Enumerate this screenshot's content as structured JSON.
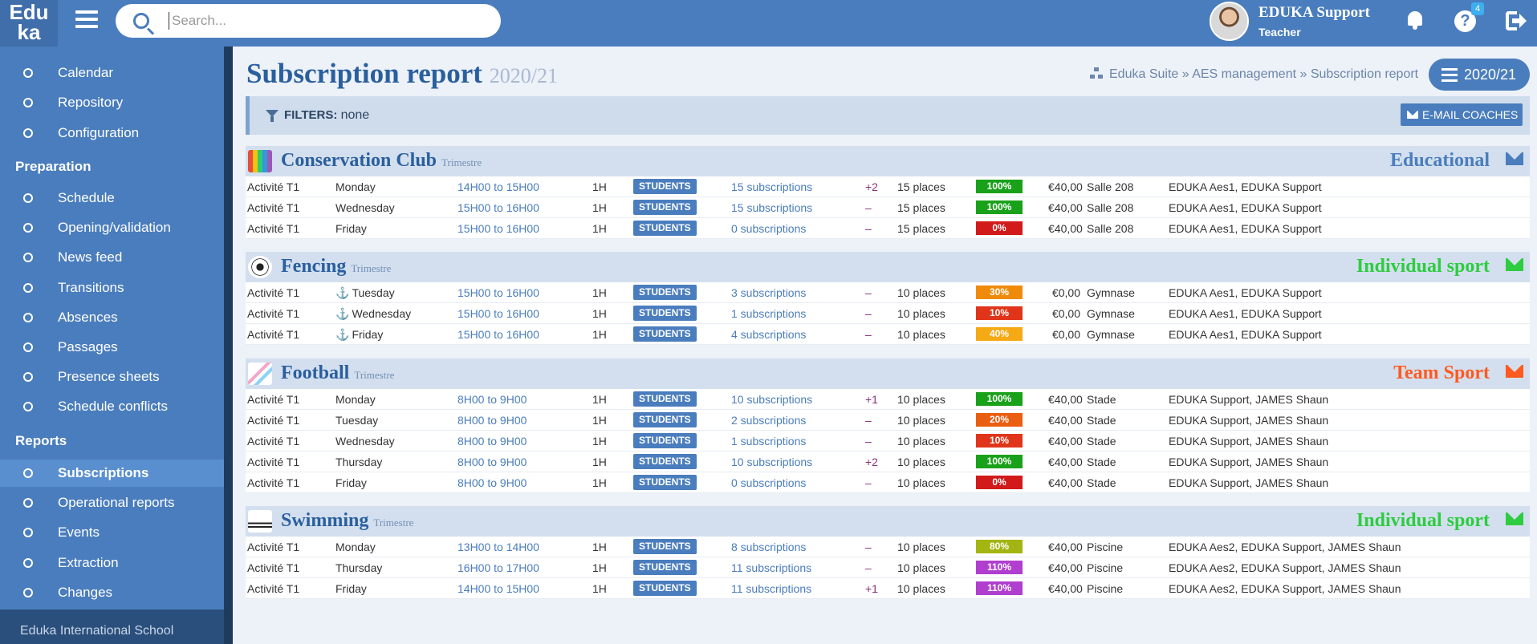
{
  "header": {
    "logo_line1": "Edu",
    "logo_line2": "ka",
    "search_placeholder": "Search...",
    "user_name": "EDUKA Support",
    "user_role": "Teacher",
    "help_badge": "4"
  },
  "sidebar": {
    "top_items": [
      "Calendar",
      "Repository",
      "Configuration"
    ],
    "preparation_title": "Preparation",
    "preparation_items": [
      "Schedule",
      "Opening/validation",
      "News feed",
      "Transitions",
      "Absences",
      "Passages",
      "Presence sheets",
      "Schedule conflicts"
    ],
    "reports_title": "Reports",
    "reports_items": [
      "Subscriptions",
      "Operational reports",
      "Events",
      "Extraction",
      "Changes"
    ],
    "active_item": "Subscriptions",
    "footer": "Eduka International School"
  },
  "page": {
    "title": "Subscription report",
    "year": "2020/21",
    "breadcrumb": "Eduka Suite » AES management » Subscription report",
    "year_button": "2020/21",
    "filters_label": "FILTERS:",
    "filters_value": "none",
    "email_button": "E-MAIL COACHES"
  },
  "colors": {
    "primary": "#4a7dbd",
    "educational": "#4a7dbd",
    "individual_sport": "#2ecc40",
    "team_sport": "#ff5a1f"
  },
  "activities": [
    {
      "name": "Conservation Club",
      "period": "Trimestre",
      "category": "Educational",
      "category_color": "#4a7dbd",
      "icon": "crayons-icon",
      "rows": [
        {
          "name": "Activité T1",
          "day": "Monday",
          "anchor": false,
          "time": "14H00 to 15H00",
          "duration": "1H",
          "button": "STUDENTS",
          "subscriptions": "15 subscriptions",
          "delta": "+2",
          "places": "15 places",
          "percent": "100%",
          "pct_color": "#1aa11a",
          "price": "€40,00",
          "room": "Salle 208",
          "coaches": "EDUKA Aes1, EDUKA Support"
        },
        {
          "name": "Activité T1",
          "day": "Wednesday",
          "anchor": false,
          "time": "15H00 to 16H00",
          "duration": "1H",
          "button": "STUDENTS",
          "subscriptions": "15 subscriptions",
          "delta": "–",
          "places": "15 places",
          "percent": "100%",
          "pct_color": "#1aa11a",
          "price": "€40,00",
          "room": "Salle 208",
          "coaches": "EDUKA Aes1, EDUKA Support"
        },
        {
          "name": "Activité T1",
          "day": "Friday",
          "anchor": false,
          "time": "15H00 to 16H00",
          "duration": "1H",
          "button": "STUDENTS",
          "subscriptions": "0 subscriptions",
          "delta": "–",
          "places": "15 places",
          "percent": "0%",
          "pct_color": "#d11a1a",
          "price": "€40,00",
          "room": "Salle 208",
          "coaches": "EDUKA Aes1, EDUKA Support"
        }
      ]
    },
    {
      "name": "Fencing",
      "period": "Trimestre",
      "category": "Individual sport",
      "category_color": "#2ecc40",
      "icon": "soccer-ball-icon",
      "rows": [
        {
          "name": "Activité T1",
          "day": "Tuesday",
          "anchor": true,
          "time": "15H00 to 16H00",
          "duration": "1H",
          "button": "STUDENTS",
          "subscriptions": "3 subscriptions",
          "delta": "–",
          "places": "10 places",
          "percent": "30%",
          "pct_color": "#f08a0b",
          "price": "€0,00",
          "room": "Gymnase",
          "coaches": "EDUKA Aes1, EDUKA Support"
        },
        {
          "name": "Activité T1",
          "day": "Wednesday",
          "anchor": true,
          "time": "15H00 to 16H00",
          "duration": "1H",
          "button": "STUDENTS",
          "subscriptions": "1 subscriptions",
          "delta": "–",
          "places": "10 places",
          "percent": "10%",
          "pct_color": "#e0351a",
          "price": "€0,00",
          "room": "Gymnase",
          "coaches": "EDUKA Aes1, EDUKA Support"
        },
        {
          "name": "Activité T1",
          "day": "Friday",
          "anchor": true,
          "time": "15H00 to 16H00",
          "duration": "1H",
          "button": "STUDENTS",
          "subscriptions": "4 subscriptions",
          "delta": "–",
          "places": "10 places",
          "percent": "40%",
          "pct_color": "#f5a914",
          "price": "€0,00",
          "room": "Gymnase",
          "coaches": "EDUKA Aes1, EDUKA Support"
        }
      ]
    },
    {
      "name": "Football",
      "period": "Trimestre",
      "category": "Team Sport",
      "category_color": "#ff5a1f",
      "icon": "kids-drawing-icon",
      "rows": [
        {
          "name": "Activité T1",
          "day": "Monday",
          "anchor": false,
          "time": "8H00 to 9H00",
          "duration": "1H",
          "button": "STUDENTS",
          "subscriptions": "10 subscriptions",
          "delta": "+1",
          "places": "10 places",
          "percent": "100%",
          "pct_color": "#1aa11a",
          "price": "€40,00",
          "room": "Stade",
          "coaches": "EDUKA Support, JAMES Shaun"
        },
        {
          "name": "Activité T1",
          "day": "Tuesday",
          "anchor": false,
          "time": "8H00 to 9H00",
          "duration": "1H",
          "button": "STUDENTS",
          "subscriptions": "2 subscriptions",
          "delta": "–",
          "places": "10 places",
          "percent": "20%",
          "pct_color": "#ea5e12",
          "price": "€40,00",
          "room": "Stade",
          "coaches": "EDUKA Support, JAMES Shaun"
        },
        {
          "name": "Activité T1",
          "day": "Wednesday",
          "anchor": false,
          "time": "8H00 to 9H00",
          "duration": "1H",
          "button": "STUDENTS",
          "subscriptions": "1 subscriptions",
          "delta": "–",
          "places": "10 places",
          "percent": "10%",
          "pct_color": "#e0351a",
          "price": "€40,00",
          "room": "Stade",
          "coaches": "EDUKA Support, JAMES Shaun"
        },
        {
          "name": "Activité T1",
          "day": "Thursday",
          "anchor": false,
          "time": "8H00 to 9H00",
          "duration": "1H",
          "button": "STUDENTS",
          "subscriptions": "10 subscriptions",
          "delta": "+2",
          "places": "10 places",
          "percent": "100%",
          "pct_color": "#1aa11a",
          "price": "€40,00",
          "room": "Stade",
          "coaches": "EDUKA Support, JAMES Shaun"
        },
        {
          "name": "Activité T1",
          "day": "Friday",
          "anchor": false,
          "time": "8H00 to 9H00",
          "duration": "1H",
          "button": "STUDENTS",
          "subscriptions": "0 subscriptions",
          "delta": "–",
          "places": "10 places",
          "percent": "0%",
          "pct_color": "#d11a1a",
          "price": "€40,00",
          "room": "Stade",
          "coaches": "EDUKA Support, JAMES Shaun"
        }
      ]
    },
    {
      "name": "Swimming",
      "period": "Trimestre",
      "category": "Individual sport",
      "category_color": "#2ecc40",
      "icon": "swimmer-icon",
      "rows": [
        {
          "name": "Activité T1",
          "day": "Monday",
          "anchor": false,
          "time": "13H00 to 14H00",
          "duration": "1H",
          "button": "STUDENTS",
          "subscriptions": "8 subscriptions",
          "delta": "–",
          "places": "10 places",
          "percent": "80%",
          "pct_color": "#a3b512",
          "price": "€40,00",
          "room": "Piscine",
          "coaches": "EDUKA Aes2, EDUKA Support, JAMES Shaun"
        },
        {
          "name": "Activité T1",
          "day": "Thursday",
          "anchor": false,
          "time": "16H00 to 17H00",
          "duration": "1H",
          "button": "STUDENTS",
          "subscriptions": "11 subscriptions",
          "delta": "–",
          "places": "10 places",
          "percent": "110%",
          "pct_color": "#b03fcf",
          "price": "€40,00",
          "room": "Piscine",
          "coaches": "EDUKA Aes2, EDUKA Support, JAMES Shaun"
        },
        {
          "name": "Activité T1",
          "day": "Friday",
          "anchor": false,
          "time": "14H00 to 15H00",
          "duration": "1H",
          "button": "STUDENTS",
          "subscriptions": "11 subscriptions",
          "delta": "+1",
          "places": "10 places",
          "percent": "110%",
          "pct_color": "#b03fcf",
          "price": "€40,00",
          "room": "Piscine",
          "coaches": "EDUKA Aes2, EDUKA Support, JAMES Shaun"
        }
      ]
    }
  ]
}
